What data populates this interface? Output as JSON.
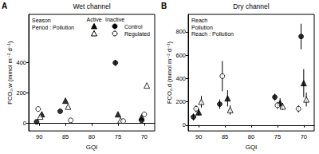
{
  "chart_data": [
    {
      "type": "scatter",
      "panel": "A",
      "title": "Wet channel",
      "x_label": "GQI",
      "y_label": "FCO₂,w (mmol m⁻² d⁻¹)",
      "xlim": [
        92,
        68
      ],
      "xticks": [
        90,
        85,
        80,
        75,
        70
      ],
      "ylim": [
        -50,
        720
      ],
      "yticks": [
        0,
        200,
        400
      ],
      "grid": false,
      "legend": "top-right",
      "annotations": [
        "Season",
        "Period : Pollution"
      ],
      "series": [
        {
          "name": "Control",
          "group": "Active",
          "marker": "triangle",
          "color": "#000000",
          "x": [
            89.5,
            85,
            75,
            70.5
          ],
          "values": [
            60,
            150,
            60,
            40
          ],
          "error": [
            null,
            null,
            null,
            null
          ]
        },
        {
          "name": "Regulated",
          "group": "Active",
          "marker": "triangle-open",
          "color": "#000000",
          "x": [
            89.8,
            84.5,
            74.5,
            69.5
          ],
          "values": [
            45,
            110,
            20,
            250
          ],
          "error": [
            null,
            null,
            null,
            null
          ]
        },
        {
          "name": "Control",
          "group": "Inactive",
          "marker": "circle",
          "color": "#000000",
          "x": [
            90.5,
            86,
            75.5,
            70.5
          ],
          "values": [
            10,
            80,
            400,
            20
          ],
          "error": [
            null,
            null,
            20,
            null
          ]
        },
        {
          "name": "Regulated",
          "group": "Inactive",
          "marker": "circle-open",
          "color": "#000000",
          "x": [
            90.2,
            84,
            74,
            70
          ],
          "values": [
            95,
            20,
            15,
            60
          ],
          "error": [
            null,
            null,
            null,
            null
          ]
        }
      ]
    },
    {
      "type": "scatter",
      "panel": "B",
      "title": "Dry channel",
      "x_label": "GQI",
      "y_label": "FCO₂,d (mmol m⁻² d⁻¹)",
      "xlim": [
        92,
        68
      ],
      "xticks": [
        90,
        85,
        80,
        75,
        70
      ],
      "ylim": [
        -50,
        950
      ],
      "yticks": [
        0,
        200,
        400,
        600,
        800
      ],
      "grid": false,
      "annotations": [
        "Reach",
        "Pollution",
        "Reach : Pollution"
      ],
      "series": [
        {
          "marker": "triangle",
          "color": "#000000",
          "x": [
            90,
            84.5,
            74.5,
            70
          ],
          "values": [
            110,
            230,
            190,
            360
          ],
          "error": [
            30,
            70,
            40,
            120
          ]
        },
        {
          "marker": "triangle-open",
          "color": "#000000",
          "x": [
            89.5,
            84,
            74,
            69.5
          ],
          "values": [
            200,
            130,
            160,
            220
          ],
          "error": [
            50,
            40,
            30,
            60
          ]
        },
        {
          "marker": "circle",
          "color": "#000000",
          "x": [
            91,
            86,
            75.5,
            70.5
          ],
          "values": [
            70,
            180,
            240,
            760
          ],
          "error": [
            30,
            40,
            30,
            110
          ]
        },
        {
          "marker": "circle-open",
          "color": "#000000",
          "x": [
            90.5,
            85.5,
            75,
            71
          ],
          "values": [
            140,
            420,
            170,
            140
          ],
          "error": [
            30,
            130,
            30,
            30
          ]
        }
      ]
    }
  ]
}
